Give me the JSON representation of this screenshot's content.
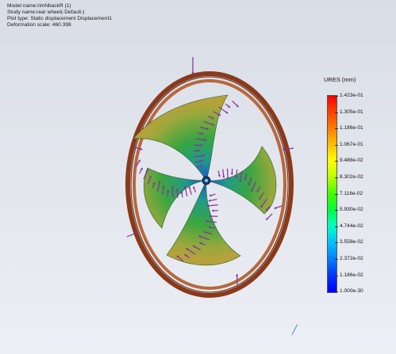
{
  "study_info": {
    "model_name": "Model name:rimNbackR (1)",
    "study_name": "Study name:rear wheel(-Default-)",
    "plot_type": "Plot type: Static displacement Displacement1",
    "deformation_scale": "Deformation scale: 460.398"
  },
  "legend": {
    "title": "URES (mm)",
    "ticks": [
      "1.423e-01",
      "1.305e-01",
      "1.186e-01",
      "1.067e-01",
      "9.488e-02",
      "8.302e-02",
      "7.116e-02",
      "5.930e-02",
      "4.744e-02",
      "3.558e-02",
      "2.372e-02",
      "1.186e-02",
      "1.000e-30"
    ],
    "gradient_top_color": "#ff0000",
    "gradient_bottom_color": "#0000ff"
  },
  "colors": {
    "rim": "#8a3a1a",
    "load_arrow": "#8b2f9e",
    "spoke_inner": "#1e4fd0",
    "spoke_outer": "#b5a23a"
  },
  "icons": {
    "triad": "triad-icon"
  }
}
